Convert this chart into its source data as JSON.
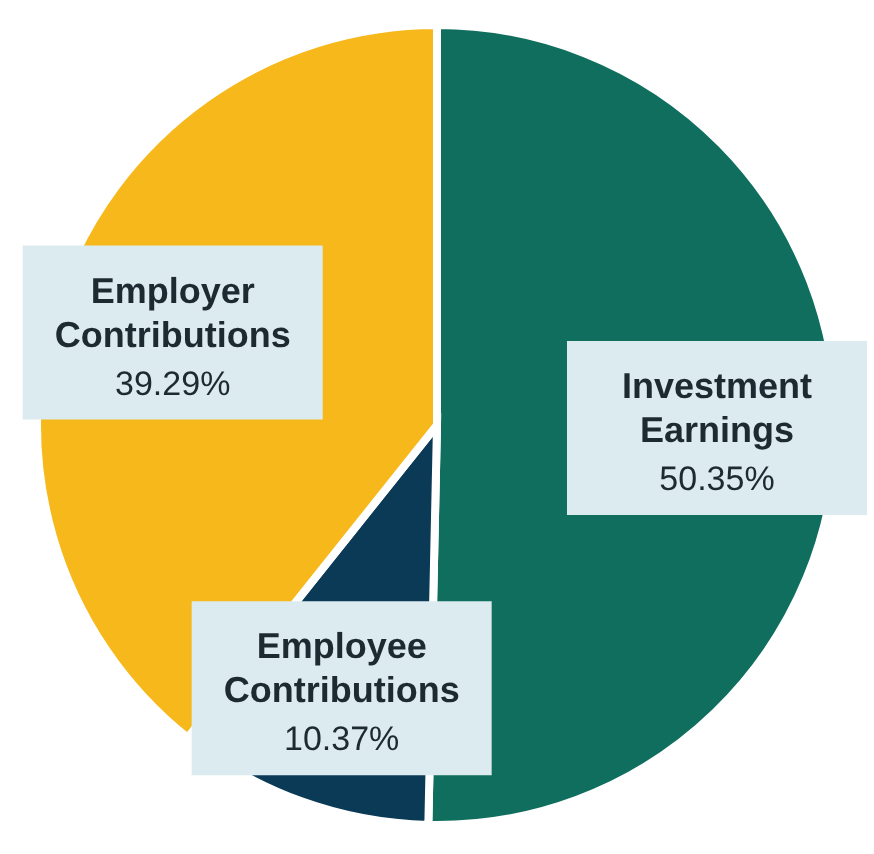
{
  "chart_data": {
    "type": "pie",
    "categories": [
      "Investment Earnings",
      "Employee Contributions",
      "Employer Contributions"
    ],
    "values": [
      50.35,
      10.37,
      39.29
    ],
    "colors": [
      "#0f6e5d",
      "#0b3a57",
      "#f6b81a"
    ],
    "value_labels": [
      "50.35%",
      "10.37%",
      "39.29%"
    ]
  }
}
